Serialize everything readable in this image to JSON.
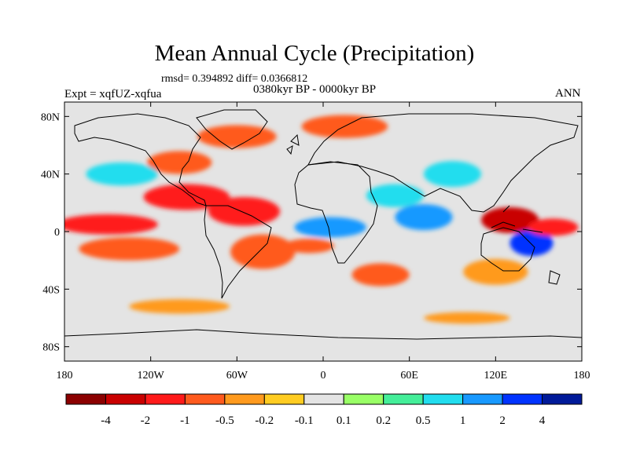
{
  "title": "Mean Annual Cycle (Precipitation)",
  "stats_line": "rmsd= 0.394892 diff= 0.0366812",
  "subtitle": "0380kyr BP - 0000kyr BP",
  "left_label": "Expt = xqfUZ-xqfua",
  "right_label": "ANN",
  "chart_data": {
    "type": "heatmap",
    "title": "Mean Annual Cycle (Precipitation)",
    "variable": "precipitation difference",
    "x_ticks": [
      "180",
      "120W",
      "60W",
      "0",
      "60E",
      "120E",
      "180"
    ],
    "x_tick_values": [
      -180,
      -120,
      -60,
      0,
      60,
      120,
      180
    ],
    "y_ticks": [
      "80N",
      "40N",
      "0",
      "40S",
      "80S"
    ],
    "y_tick_values": [
      80,
      40,
      0,
      -40,
      -80
    ],
    "xlim": [
      -180,
      180
    ],
    "ylim": [
      -90,
      90
    ],
    "colorbar": {
      "levels": [
        "-4",
        "-2",
        "-1",
        "-0.5",
        "-0.2",
        "-0.1",
        "0.1",
        "0.2",
        "0.5",
        "1",
        "2",
        "4"
      ],
      "colors": [
        "#8b0000",
        "#c90000",
        "#ff1a1a",
        "#ff5a1e",
        "#ff9a1e",
        "#ffcc22",
        "#e4e4e4",
        "#99ff66",
        "#44ee99",
        "#22ddee",
        "#1899ff",
        "#0033ff",
        "#001a99"
      ]
    },
    "anomaly_regions": [
      {
        "lon": -150,
        "lat": 5,
        "w": 70,
        "h": 7,
        "level": "-1"
      },
      {
        "lon": -135,
        "lat": -12,
        "w": 70,
        "h": 8,
        "level": "-0.5"
      },
      {
        "lon": -95,
        "lat": 24,
        "w": 60,
        "h": 9,
        "level": "-1"
      },
      {
        "lon": -55,
        "lat": 14,
        "w": 50,
        "h": 10,
        "level": "-1"
      },
      {
        "lon": -100,
        "lat": 48,
        "w": 45,
        "h": 8,
        "level": "-0.5"
      },
      {
        "lon": -60,
        "lat": 66,
        "w": 55,
        "h": 8,
        "level": "-0.5"
      },
      {
        "lon": 15,
        "lat": 73,
        "w": 60,
        "h": 8,
        "level": "-0.5"
      },
      {
        "lon": -42,
        "lat": -14,
        "w": 45,
        "h": 12,
        "level": "-0.5"
      },
      {
        "lon": 5,
        "lat": 3,
        "w": 50,
        "h": 7,
        "level": "1"
      },
      {
        "lon": -10,
        "lat": -10,
        "w": 35,
        "h": 5,
        "level": "-0.5"
      },
      {
        "lon": 70,
        "lat": 10,
        "w": 40,
        "h": 9,
        "level": "1"
      },
      {
        "lon": 50,
        "lat": 25,
        "w": 40,
        "h": 8,
        "level": "0.5"
      },
      {
        "lon": 130,
        "lat": 8,
        "w": 40,
        "h": 9,
        "level": "-2"
      },
      {
        "lon": 145,
        "lat": -8,
        "w": 30,
        "h": 9,
        "level": "2"
      },
      {
        "lon": 160,
        "lat": 3,
        "w": 35,
        "h": 6,
        "level": "-1"
      },
      {
        "lon": 90,
        "lat": 40,
        "w": 40,
        "h": 9,
        "level": "0.5"
      },
      {
        "lon": -140,
        "lat": 40,
        "w": 50,
        "h": 8,
        "level": "0.5"
      },
      {
        "lon": 40,
        "lat": -30,
        "w": 40,
        "h": 8,
        "level": "-0.5"
      },
      {
        "lon": 120,
        "lat": -28,
        "w": 45,
        "h": 9,
        "level": "-0.2"
      },
      {
        "lon": -100,
        "lat": -52,
        "w": 70,
        "h": 5,
        "level": "-0.2"
      },
      {
        "lon": 100,
        "lat": -60,
        "w": 60,
        "h": 4,
        "level": "-0.2"
      }
    ]
  }
}
